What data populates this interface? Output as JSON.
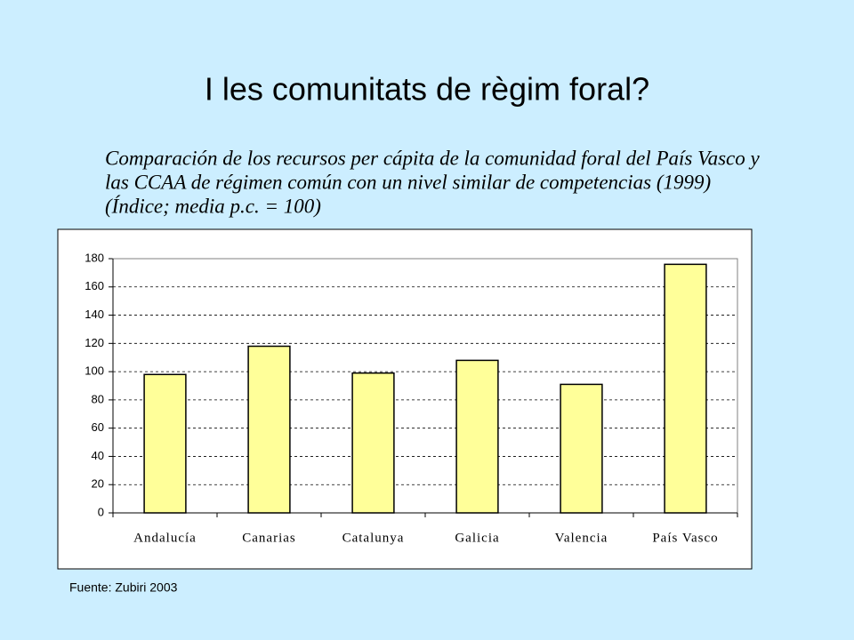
{
  "chart_data": {
    "type": "bar",
    "title": "I les comunitats de règim foral?",
    "subtitle": [
      "Comparación de los recursos per cápita de la comunidad foral del País Vasco y",
      "las CCAA de régimen común con un nivel similar de competencias (1999)",
      "(Índice; media p.c. = 100)"
    ],
    "source": "Fuente: Zubiri 2003",
    "categories": [
      "Andalucía",
      "Canarias",
      "Catalunya",
      "Galicia",
      "Valencia",
      "País Vasco"
    ],
    "values": [
      98,
      118,
      99,
      108,
      91,
      176
    ],
    "color": "#ffff99",
    "ylim": [
      0,
      180
    ],
    "yticks": [
      0,
      20,
      40,
      60,
      80,
      100,
      120,
      140,
      160,
      180
    ],
    "grid": true
  }
}
